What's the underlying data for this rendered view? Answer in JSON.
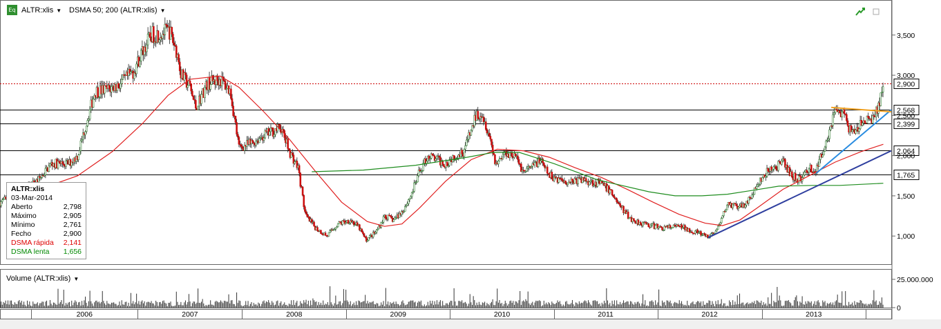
{
  "header": {
    "badge": "Eq",
    "symbol_label": "ALTR:xlis",
    "indicator_label": "DSMA 50; 200 (ALTR:xlis)"
  },
  "info_box": {
    "title": "ALTR:xlis",
    "date": "03-Mar-2014",
    "rows": [
      {
        "label": "Aberto",
        "value": "2,798"
      },
      {
        "label": "Máximo",
        "value": "2,905"
      },
      {
        "label": "Mínimo",
        "value": "2,761"
      },
      {
        "label": "Fecho",
        "value": "2,900"
      },
      {
        "label": "DSMA rápida",
        "value": "2,141"
      },
      {
        "label": "DSMA lenta",
        "value": "1,656"
      }
    ]
  },
  "volume_panel": {
    "label": "Volume (ALTR:xlis)",
    "ticks": [
      {
        "value": 25000000,
        "label": "25.000.000"
      },
      {
        "value": 0,
        "label": "0"
      }
    ]
  },
  "colors": {
    "candle_up": "#2e7d2e",
    "candle_down": "#cc1111",
    "fast_ma": "#e02020",
    "slow_ma": "#1e8c1e",
    "level_line": "#000000",
    "last_price_line": "#cc0000",
    "trend_blue": "#2f3f9f",
    "trend_light_blue": "#2a8ce0",
    "trend_orange": "#f0a020"
  },
  "chart_data": {
    "type": "candlestick",
    "x_range": [
      "2005-09-01",
      "2014-03-31"
    ],
    "y_range": [
      0.65,
      3.85
    ],
    "yticks": [
      {
        "value": 1.0,
        "label": "1,000"
      },
      {
        "value": 1.5,
        "label": "1,500"
      },
      {
        "value": 2.0,
        "label": "2,000"
      },
      {
        "value": 2.5,
        "label": "2,500"
      },
      {
        "value": 3.0,
        "label": "3,000"
      },
      {
        "value": 3.5,
        "label": "3,500"
      }
    ],
    "year_labels": [
      "2006",
      "2007",
      "2008",
      "2009",
      "2010",
      "2011",
      "2012",
      "2013"
    ],
    "year_bounds": [
      "2005-12-20",
      "2006-12-29",
      "2007-12-31",
      "2008-12-31",
      "2009-12-31",
      "2010-12-31",
      "2011-12-30",
      "2012-12-31",
      "2013-12-31"
    ],
    "horizontal_levels": [
      {
        "value": 2.568,
        "label": "2,568"
      },
      {
        "value": 2.399,
        "label": "2,399"
      },
      {
        "value": 2.064,
        "label": "2,064"
      },
      {
        "value": 1.765,
        "label": "1,765"
      }
    ],
    "last_price": {
      "value": 2.9,
      "label": "2,900"
    },
    "close_path": [
      [
        "2005-09-01",
        1.42
      ],
      [
        "2005-11-15",
        1.55
      ],
      [
        "2006-01-15",
        1.7
      ],
      [
        "2006-03-01",
        1.9
      ],
      [
        "2006-05-01",
        1.9
      ],
      [
        "2006-06-01",
        2.0
      ],
      [
        "2006-07-01",
        2.4
      ],
      [
        "2006-08-01",
        2.8
      ],
      [
        "2006-09-15",
        2.82
      ],
      [
        "2006-11-01",
        2.9
      ],
      [
        "2006-12-15",
        3.05
      ],
      [
        "2007-01-15",
        3.3
      ],
      [
        "2007-02-15",
        3.5
      ],
      [
        "2007-03-15",
        3.52
      ],
      [
        "2007-04-20",
        3.55
      ],
      [
        "2007-05-15",
        3.3
      ],
      [
        "2007-06-01",
        3.0
      ],
      [
        "2007-07-01",
        2.85
      ],
      [
        "2007-07-20",
        2.6
      ],
      [
        "2007-09-01",
        2.9
      ],
      [
        "2007-10-15",
        2.95
      ],
      [
        "2007-11-20",
        2.8
      ],
      [
        "2007-12-20",
        2.1
      ],
      [
        "2008-02-01",
        2.15
      ],
      [
        "2008-03-15",
        2.25
      ],
      [
        "2008-04-15",
        2.3
      ],
      [
        "2008-05-15",
        2.35
      ],
      [
        "2008-06-15",
        2.05
      ],
      [
        "2008-07-15",
        1.85
      ],
      [
        "2008-08-10",
        1.25
      ],
      [
        "2008-09-15",
        1.1
      ],
      [
        "2008-10-25",
        1.0
      ],
      [
        "2008-12-01",
        1.15
      ],
      [
        "2009-01-15",
        1.2
      ],
      [
        "2009-02-15",
        1.1
      ],
      [
        "2009-03-10",
        0.95
      ],
      [
        "2009-04-15",
        1.05
      ],
      [
        "2009-05-15",
        1.25
      ],
      [
        "2009-06-15",
        1.2
      ],
      [
        "2009-07-15",
        1.3
      ],
      [
        "2009-08-15",
        1.5
      ],
      [
        "2009-09-15",
        1.8
      ],
      [
        "2009-10-15",
        2.0
      ],
      [
        "2009-11-15",
        1.95
      ],
      [
        "2009-12-15",
        1.9
      ],
      [
        "2010-01-15",
        2.0
      ],
      [
        "2010-02-15",
        2.05
      ],
      [
        "2010-03-15",
        2.3
      ],
      [
        "2010-04-01",
        2.5
      ],
      [
        "2010-04-20",
        2.55
      ],
      [
        "2010-05-15",
        2.3
      ],
      [
        "2010-06-10",
        1.9
      ],
      [
        "2010-07-15",
        2.05
      ],
      [
        "2010-08-15",
        2.0
      ],
      [
        "2010-09-15",
        1.8
      ],
      [
        "2010-10-15",
        1.85
      ],
      [
        "2010-11-10",
        1.95
      ],
      [
        "2010-12-15",
        1.75
      ],
      [
        "2011-02-15",
        1.68
      ],
      [
        "2011-04-15",
        1.7
      ],
      [
        "2011-06-15",
        1.65
      ],
      [
        "2011-07-20",
        1.55
      ],
      [
        "2011-08-25",
        1.35
      ],
      [
        "2011-10-01",
        1.2
      ],
      [
        "2011-11-15",
        1.15
      ],
      [
        "2012-01-15",
        1.1
      ],
      [
        "2012-03-15",
        1.12
      ],
      [
        "2012-05-15",
        1.05
      ],
      [
        "2012-06-25",
        0.98
      ],
      [
        "2012-08-01",
        1.1
      ],
      [
        "2012-09-01",
        1.4
      ],
      [
        "2012-10-15",
        1.35
      ],
      [
        "2012-11-15",
        1.45
      ],
      [
        "2012-12-20",
        1.65
      ],
      [
        "2013-01-20",
        1.8
      ],
      [
        "2013-02-15",
        1.85
      ],
      [
        "2013-03-15",
        1.92
      ],
      [
        "2013-04-15",
        1.75
      ],
      [
        "2013-05-15",
        1.7
      ],
      [
        "2013-06-15",
        1.85
      ],
      [
        "2013-07-10",
        1.8
      ],
      [
        "2013-08-01",
        2.05
      ],
      [
        "2013-08-25",
        2.3
      ],
      [
        "2013-09-15",
        2.6
      ],
      [
        "2013-10-15",
        2.5
      ],
      [
        "2013-11-15",
        2.25
      ],
      [
        "2013-12-15",
        2.4
      ],
      [
        "2014-01-15",
        2.45
      ],
      [
        "2014-02-10",
        2.55
      ],
      [
        "2014-03-03",
        2.9
      ]
    ],
    "fast_ma": [
      [
        "2006-02-01",
        1.6
      ],
      [
        "2006-06-01",
        1.75
      ],
      [
        "2006-10-01",
        2.05
      ],
      [
        "2007-01-15",
        2.4
      ],
      [
        "2007-04-15",
        2.75
      ],
      [
        "2007-07-01",
        2.95
      ],
      [
        "2007-10-15",
        2.99
      ],
      [
        "2007-12-20",
        2.85
      ],
      [
        "2008-03-15",
        2.55
      ],
      [
        "2008-06-15",
        2.2
      ],
      [
        "2008-09-15",
        1.8
      ],
      [
        "2008-12-15",
        1.42
      ],
      [
        "2009-03-15",
        1.18
      ],
      [
        "2009-05-15",
        1.12
      ],
      [
        "2009-07-15",
        1.15
      ],
      [
        "2009-09-15",
        1.35
      ],
      [
        "2009-12-15",
        1.68
      ],
      [
        "2010-03-15",
        1.95
      ],
      [
        "2010-06-15",
        2.08
      ],
      [
        "2010-09-15",
        2.06
      ],
      [
        "2010-12-15",
        1.98
      ],
      [
        "2011-03-15",
        1.85
      ],
      [
        "2011-06-15",
        1.73
      ],
      [
        "2011-09-15",
        1.58
      ],
      [
        "2011-12-15",
        1.42
      ],
      [
        "2012-03-15",
        1.27
      ],
      [
        "2012-06-15",
        1.16
      ],
      [
        "2012-08-15",
        1.13
      ],
      [
        "2012-10-15",
        1.2
      ],
      [
        "2012-12-15",
        1.35
      ],
      [
        "2013-03-15",
        1.58
      ],
      [
        "2013-06-15",
        1.75
      ],
      [
        "2013-09-15",
        1.92
      ],
      [
        "2013-12-15",
        2.05
      ],
      [
        "2014-03-03",
        2.141
      ]
    ],
    "slow_ma": [
      [
        "2008-09-01",
        1.8
      ],
      [
        "2009-03-01",
        1.82
      ],
      [
        "2009-09-01",
        1.88
      ],
      [
        "2010-03-01",
        1.98
      ],
      [
        "2010-06-01",
        2.04
      ],
      [
        "2010-09-01",
        2.04
      ],
      [
        "2011-01-01",
        1.9
      ],
      [
        "2011-06-01",
        1.7
      ],
      [
        "2011-12-01",
        1.55
      ],
      [
        "2012-03-01",
        1.5
      ],
      [
        "2012-06-01",
        1.5
      ],
      [
        "2012-09-01",
        1.52
      ],
      [
        "2012-12-01",
        1.57
      ],
      [
        "2013-03-01",
        1.62
      ],
      [
        "2013-07-01",
        1.63
      ],
      [
        "2013-10-01",
        1.63
      ],
      [
        "2014-03-03",
        1.656
      ]
    ],
    "trend_lines": [
      {
        "color_key": "trend_blue",
        "from": [
          "2012-06-25",
          0.98
        ],
        "to": [
          "2014-03-31",
          2.06
        ]
      },
      {
        "color_key": "trend_light_blue",
        "from": [
          "2013-07-10",
          1.78
        ],
        "to": [
          "2014-03-31",
          2.57
        ]
      },
      {
        "color_key": "trend_orange",
        "from": [
          "2013-09-01",
          2.6
        ],
        "to": [
          "2014-03-31",
          2.545
        ]
      }
    ]
  }
}
